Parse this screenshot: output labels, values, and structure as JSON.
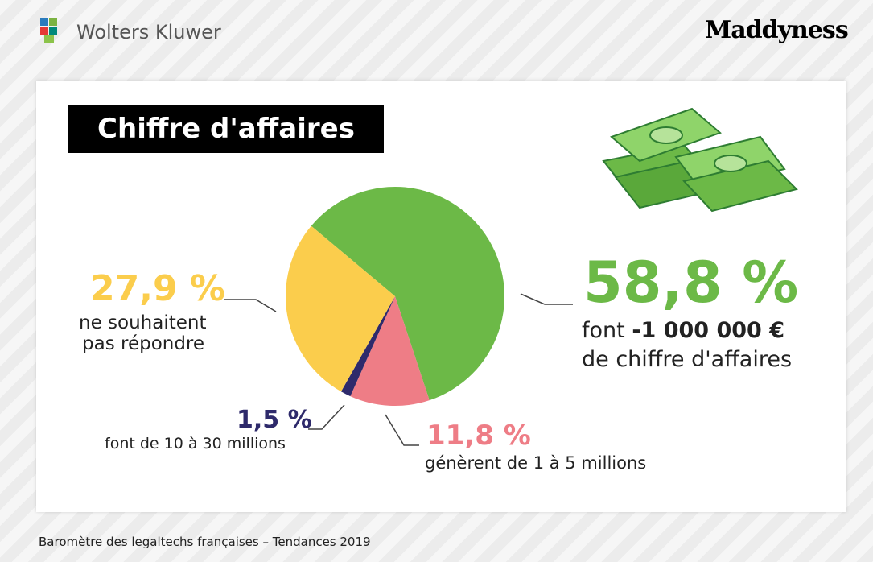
{
  "header": {
    "left_logo": "Wolters Kluwer",
    "right_logo": "Maddyness"
  },
  "chart_data": {
    "type": "pie",
    "title": "Chiffre d'affaires",
    "values": [
      58.8,
      11.8,
      1.5,
      27.9
    ],
    "value_labels": [
      "58,8 %",
      "11,8 %",
      "1,5 %",
      "27,9 %"
    ],
    "colors": [
      "#6cb947",
      "#ee7d86",
      "#2e2a6b",
      "#fbcd4c"
    ],
    "descriptions": [
      [
        "font",
        "-1 000 000 €",
        "de chiffre d'affaires"
      ],
      [
        "génèrent de 1 à 5 millions"
      ],
      [
        "font de 10 à 30 millions"
      ],
      [
        "ne souhaitent",
        "pas répondre"
      ]
    ]
  },
  "footer": "Baromètre des legaltechs françaises – Tendances 2019"
}
